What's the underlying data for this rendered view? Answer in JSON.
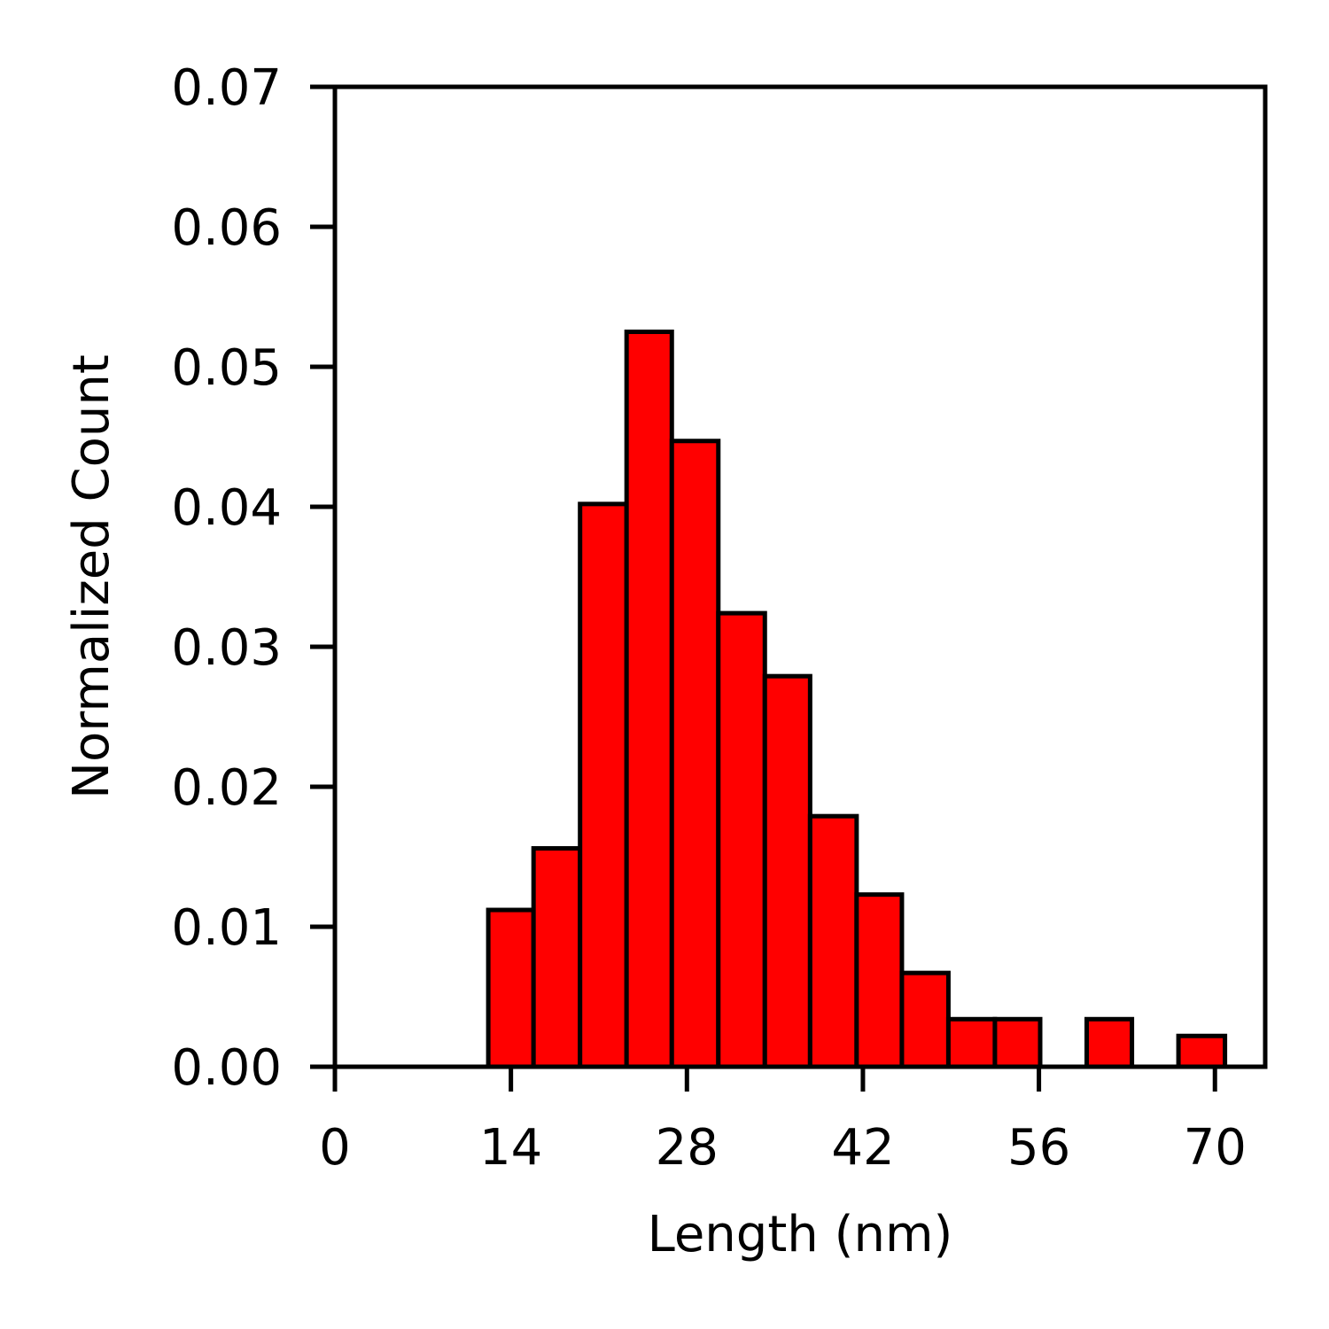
{
  "chart_data": {
    "type": "bar",
    "title": "",
    "xlabel": "Length (nm)",
    "ylabel": "Normalized Count",
    "xlim": [
      0,
      74
    ],
    "ylim": [
      0,
      0.07
    ],
    "xticks": [
      0,
      14,
      28,
      42,
      56,
      70
    ],
    "xtick_labels": [
      "0",
      "14",
      "28",
      "42",
      "56",
      "70"
    ],
    "yticks": [
      0,
      0.01,
      0.02,
      0.03,
      0.04,
      0.05,
      0.06,
      0.07
    ],
    "ytick_labels": [
      "0.00",
      "0.01",
      "0.02",
      "0.03",
      "0.04",
      "0.05",
      "0.06",
      "0.07"
    ],
    "grid": false,
    "bar_color": "#ff0000",
    "edge_color": "#000000",
    "bins": [
      {
        "start": 12.2,
        "end": 15.8,
        "value": 0.0112
      },
      {
        "start": 15.8,
        "end": 19.5,
        "value": 0.0156
      },
      {
        "start": 19.5,
        "end": 23.2,
        "value": 0.0402
      },
      {
        "start": 23.2,
        "end": 26.8,
        "value": 0.0525
      },
      {
        "start": 26.8,
        "end": 30.5,
        "value": 0.0447
      },
      {
        "start": 30.5,
        "end": 34.2,
        "value": 0.0324
      },
      {
        "start": 34.2,
        "end": 37.8,
        "value": 0.0279
      },
      {
        "start": 37.8,
        "end": 41.5,
        "value": 0.0179
      },
      {
        "start": 41.5,
        "end": 45.1,
        "value": 0.0123
      },
      {
        "start": 45.1,
        "end": 48.8,
        "value": 0.0067
      },
      {
        "start": 48.8,
        "end": 52.5,
        "value": 0.0034
      },
      {
        "start": 52.5,
        "end": 56.1,
        "value": 0.0034
      },
      {
        "start": 56.1,
        "end": 59.8,
        "value": 0.0
      },
      {
        "start": 59.8,
        "end": 63.4,
        "value": 0.0034
      },
      {
        "start": 63.4,
        "end": 67.1,
        "value": 0.0
      },
      {
        "start": 67.1,
        "end": 70.8,
        "value": 0.0022
      }
    ]
  }
}
